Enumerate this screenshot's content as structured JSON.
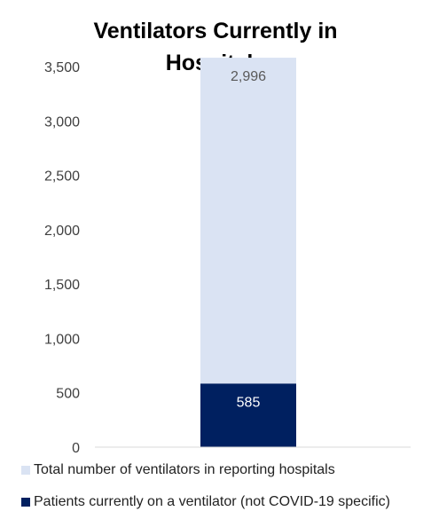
{
  "chart_data": {
    "type": "bar",
    "stacked": true,
    "title": "Ventilators Currently in Hospitals",
    "title_lines": [
      "Ventilators Currently in",
      "Hospitals"
    ],
    "categories": [
      ""
    ],
    "series": [
      {
        "name": "Patients currently on a ventilator (not COVID-19 specific)",
        "values": [
          585
        ],
        "color": "#002060",
        "label": "585",
        "label_color": "#ffffff"
      },
      {
        "name": "Total number of ventilators in reporting hospitals",
        "values": [
          2996
        ],
        "color": "#dae3f3",
        "label": "2,996",
        "label_color": "#595959"
      }
    ],
    "y_ticks": [
      "0",
      "500",
      "1,000",
      "1,500",
      "2,000",
      "2,500",
      "3,000",
      "3,500"
    ],
    "ylim": [
      0,
      3500
    ],
    "grid": false,
    "legend_position": "bottom",
    "legend_order": [
      "Total number of ventilators in reporting hospitals",
      "Patients currently on a ventilator (not COVID-19 specific)"
    ]
  }
}
